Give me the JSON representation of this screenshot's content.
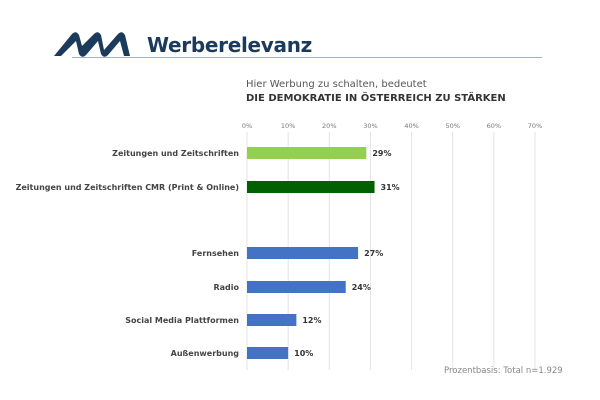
{
  "header": {
    "logo_text": "MA",
    "brand": "Werberelevanz"
  },
  "chart_data": {
    "type": "bar",
    "orientation": "horizontal",
    "subtitle": "Hier Werbung zu schalten, bedeutet",
    "title": "DIE DEMOKRATIE IN ÖSTERREICH ZU STÄRKEN",
    "xlim": [
      0,
      70
    ],
    "xticks": [
      "0%",
      "10%",
      "20%",
      "30%",
      "40%",
      "50%",
      "60%",
      "70%"
    ],
    "xtick_values": [
      0,
      10,
      20,
      30,
      40,
      50,
      60,
      70
    ],
    "grid": true,
    "categories": [
      "Zeitungen und Zeitschriften",
      "Zeitungen und Zeitschriften CMR (Print & Online)",
      "Fernsehen",
      "Radio",
      "Social Media Plattformen",
      "Außenwerbung"
    ],
    "values": [
      29,
      31,
      27,
      24,
      12,
      10
    ],
    "labels": [
      "29%",
      "31%",
      "27%",
      "24%",
      "12%",
      "10%"
    ],
    "colors": [
      "#92d050",
      "#006100",
      "#4472c4",
      "#4472c4",
      "#4472c4",
      "#4472c4"
    ],
    "group_gap_after_index": 1
  },
  "footnote": "Prozentbasis: Total n=1.929"
}
